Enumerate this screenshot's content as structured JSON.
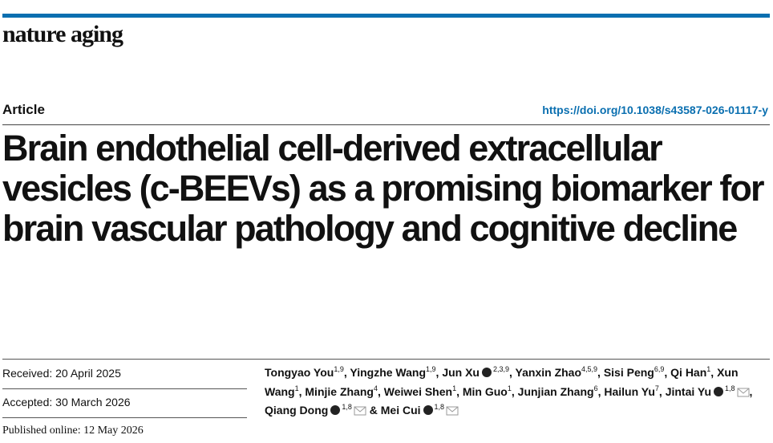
{
  "header": {
    "journal": "nature aging",
    "article_type": "Article",
    "doi": "https://doi.org/10.1038/s43587-026-01117-y"
  },
  "title": "Brain endothelial cell-derived extracellular vesicles (c-BEEVs) as a promising biomarker for brain vascular pathology and cognitive decline",
  "dates": {
    "received": "Received: 20 April 2025",
    "accepted": "Accepted: 30 March 2026",
    "published": "Published online: 12 May 2026"
  },
  "authors": [
    {
      "prefix": "",
      "name": "Tongyao You",
      "sup": "1,9",
      "orcid": false,
      "corresponding": false,
      "suffix": ","
    },
    {
      "prefix": "",
      "name": "Yingzhe Wang",
      "sup": "1,9",
      "orcid": false,
      "corresponding": false,
      "suffix": ","
    },
    {
      "prefix": "",
      "name": "Jun Xu",
      "sup": "2,3,9",
      "orcid": true,
      "corresponding": false,
      "suffix": ","
    },
    {
      "prefix": "",
      "name": "Yanxin Zhao",
      "sup": "4,5,9",
      "orcid": false,
      "corresponding": false,
      "suffix": ","
    },
    {
      "prefix": "",
      "name": "Sisi Peng",
      "sup": "6,9",
      "orcid": false,
      "corresponding": false,
      "suffix": ","
    },
    {
      "prefix": "",
      "name": "Qi Han",
      "sup": "1",
      "orcid": false,
      "corresponding": false,
      "suffix": ","
    },
    {
      "prefix": "",
      "name": "Xun Wang",
      "sup": "1",
      "orcid": false,
      "corresponding": false,
      "suffix": ","
    },
    {
      "prefix": "",
      "name": "Minjie Zhang",
      "sup": "4",
      "orcid": false,
      "corresponding": false,
      "suffix": ","
    },
    {
      "prefix": "",
      "name": "Weiwei Shen",
      "sup": "1",
      "orcid": false,
      "corresponding": false,
      "suffix": ","
    },
    {
      "prefix": "",
      "name": "Min Guo",
      "sup": "1",
      "orcid": false,
      "corresponding": false,
      "suffix": ","
    },
    {
      "prefix": "",
      "name": "Junjian Zhang",
      "sup": "6",
      "orcid": false,
      "corresponding": false,
      "suffix": ","
    },
    {
      "prefix": "",
      "name": "Hailun Yu",
      "sup": "7",
      "orcid": false,
      "corresponding": false,
      "suffix": ","
    },
    {
      "prefix": "",
      "name": "Jintai Yu",
      "sup": "1,8",
      "orcid": true,
      "corresponding": true,
      "suffix": ","
    },
    {
      "prefix": "",
      "name": "Qiang Dong",
      "sup": "1,8",
      "orcid": true,
      "corresponding": true,
      "suffix": ""
    },
    {
      "prefix": "&",
      "name": "Mei Cui",
      "sup": "1,8",
      "orcid": true,
      "corresponding": true,
      "suffix": ""
    }
  ]
}
